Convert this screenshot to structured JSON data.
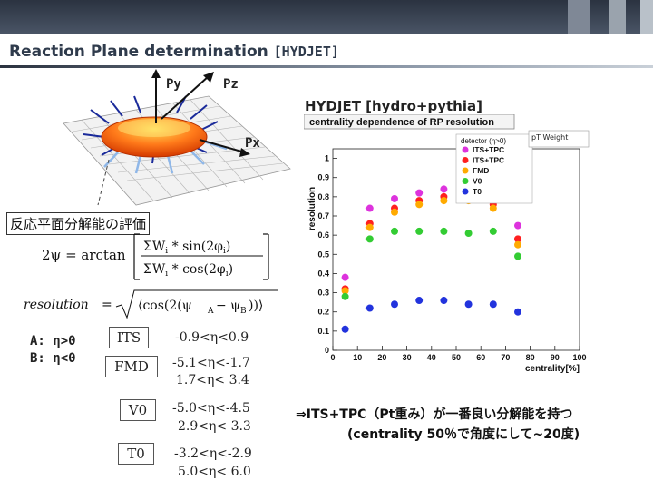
{
  "header": {
    "title": "Reaction Plane determination",
    "subtitle": "[HYDJET]"
  },
  "diagram": {
    "py": "Py",
    "pz": "Pz",
    "px": "Px"
  },
  "hydjet_label": "HYDJET [hydro+pythia]",
  "section_title": "反応平面分解能の評価",
  "eta_cuts": {
    "a": "A: η>0",
    "b": "B: η<0"
  },
  "detectors": [
    {
      "name": "ITS",
      "range1": "-0.9<η<0.9",
      "range2": ""
    },
    {
      "name": "FMD",
      "range1": "-5.1<η<-1.7",
      "range2": "1.7<η< 3.4"
    },
    {
      "name": "V0",
      "range1": "-5.0<η<-4.5",
      "range2": "2.9<η< 3.3"
    },
    {
      "name": "T0",
      "range1": "-3.2<η<-2.9",
      "range2": "5.0<η< 6.0"
    }
  ],
  "note": {
    "line1": "⇒ITS+TPC（Pt重み）が一番良い分解能を持つ",
    "line2": "(centrality 50％で角度にして~20度)"
  },
  "pt_weight_label": "pT Weight",
  "chart_data": {
    "type": "scatter",
    "title": "centrality dependence of RP resolution",
    "xlabel": "centrality[%]",
    "ylabel": "resolution",
    "xlim": [
      0,
      100
    ],
    "ylim": [
      0,
      1.05
    ],
    "x_ticks": [
      "0",
      "10",
      "20",
      "30",
      "40",
      "50",
      "60",
      "70",
      "80",
      "90",
      "100"
    ],
    "y_ticks": [
      "0",
      "0.1",
      "0.2",
      "0.3",
      "0.4",
      "0.5",
      "0.6",
      "0.7",
      "0.8",
      "0.9",
      "1"
    ],
    "legend_title": "detector (η>0)",
    "legend_position": "top-right",
    "series": [
      {
        "name": "ITS+TPC",
        "color": "#dd33dd",
        "x": [
          5,
          15,
          25,
          35,
          45,
          55,
          65,
          75
        ],
        "y": [
          0.38,
          0.74,
          0.79,
          0.82,
          0.84,
          0.85,
          0.81,
          0.65
        ]
      },
      {
        "name": "ITS+TPC",
        "color": "#ff2020",
        "x": [
          5,
          15,
          25,
          35,
          45,
          55,
          65,
          75
        ],
        "y": [
          0.32,
          0.66,
          0.74,
          0.78,
          0.8,
          0.8,
          0.76,
          0.58
        ]
      },
      {
        "name": "FMD",
        "color": "#ffaa00",
        "x": [
          5,
          15,
          25,
          35,
          45,
          55,
          65,
          75
        ],
        "y": [
          0.31,
          0.64,
          0.72,
          0.76,
          0.78,
          0.78,
          0.74,
          0.55
        ]
      },
      {
        "name": "V0",
        "color": "#33cc33",
        "x": [
          5,
          15,
          25,
          35,
          45,
          55,
          65,
          75
        ],
        "y": [
          0.28,
          0.58,
          0.62,
          0.62,
          0.62,
          0.61,
          0.62,
          0.49
        ]
      },
      {
        "name": "T0",
        "color": "#2233dd",
        "x": [
          5,
          15,
          25,
          35,
          45,
          55,
          65,
          75
        ],
        "y": [
          0.11,
          0.22,
          0.24,
          0.26,
          0.26,
          0.24,
          0.24,
          0.2
        ]
      }
    ]
  }
}
